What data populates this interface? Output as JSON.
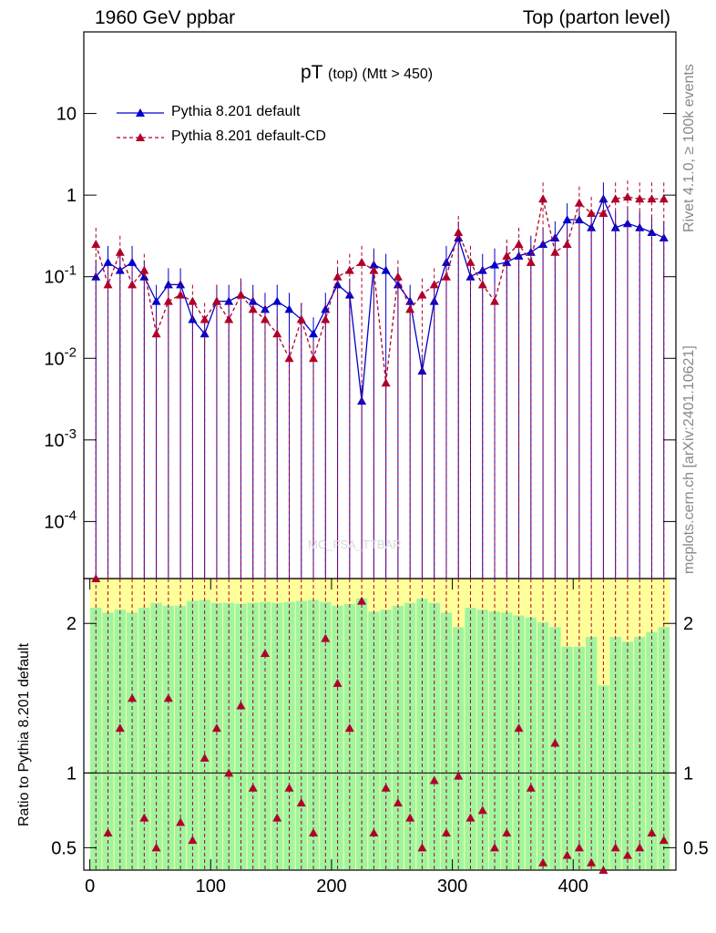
{
  "header": {
    "left": "1960 GeV ppbar",
    "right": "Top (parton level)",
    "side_rivet": "Rivet 4.1.0, ≥ 100k events",
    "side_mcplots": "mcplots.cern.ch [arXiv:2401.10621]"
  },
  "title": {
    "main": "pT",
    "sub": "(top) (Mtt > 450)"
  },
  "watermark": "MC_FSA_TTBAR",
  "legend": {
    "series1": "Pythia 8.201 default",
    "series2": "Pythia 8.201 default-CD"
  },
  "ratio_ylabel": "Ratio to Pythia 8.201 default",
  "colors": {
    "series1": "#0000cc",
    "series2": "#b0002a",
    "band_green": "#a0f5a0",
    "band_yellow": "#ffff9a"
  },
  "chart_data": {
    "type": "line",
    "xlim": [
      -5,
      485
    ],
    "ylim_main": [
      2e-05,
      100
    ],
    "ylim_ratio": [
      0.35,
      2.3
    ],
    "x_ticks": [
      "0",
      "100",
      "200",
      "300",
      "400"
    ],
    "y_ticks_main": [
      "10",
      "1",
      "10^-1",
      "10^-2",
      "10^-3",
      "10^-4"
    ],
    "y_ticks_ratio": [
      "2",
      "1",
      "0.5"
    ],
    "x": [
      5,
      15,
      25,
      35,
      45,
      55,
      65,
      75,
      85,
      95,
      105,
      115,
      125,
      135,
      145,
      155,
      165,
      175,
      185,
      195,
      205,
      215,
      225,
      235,
      245,
      255,
      265,
      275,
      285,
      295,
      305,
      315,
      325,
      335,
      345,
      355,
      365,
      375,
      385,
      395,
      405,
      415,
      425,
      435,
      445,
      455,
      465,
      475
    ],
    "series": [
      {
        "name": "Pythia 8.201 default",
        "values": [
          0.1,
          0.15,
          0.12,
          0.15,
          0.1,
          0.05,
          0.08,
          0.08,
          0.03,
          0.02,
          0.05,
          0.05,
          0.06,
          0.05,
          0.04,
          0.05,
          0.04,
          0.03,
          0.02,
          0.04,
          0.08,
          0.06,
          0.003,
          0.14,
          0.12,
          0.08,
          0.05,
          0.007,
          0.05,
          0.15,
          0.3,
          0.1,
          0.12,
          0.14,
          0.15,
          0.18,
          0.2,
          0.25,
          0.3,
          0.5,
          0.5,
          0.4,
          0.9,
          0.4,
          0.45,
          0.4,
          0.35,
          0.3
        ]
      },
      {
        "name": "Pythia 8.201 default-CD",
        "values": [
          0.25,
          0.08,
          0.2,
          0.08,
          0.12,
          0.02,
          0.05,
          0.06,
          0.05,
          0.03,
          0.05,
          0.03,
          0.06,
          0.04,
          0.03,
          0.02,
          0.01,
          0.03,
          0.01,
          0.03,
          0.1,
          0.12,
          0.15,
          0.12,
          0.005,
          0.1,
          0.04,
          0.06,
          0.08,
          0.1,
          0.35,
          0.15,
          0.08,
          0.05,
          0.18,
          0.25,
          0.15,
          0.9,
          0.2,
          0.25,
          0.8,
          0.6,
          0.6,
          0.9,
          0.95,
          0.9,
          0.9,
          0.9
        ]
      }
    ],
    "ratio_series": {
      "name": "Pythia 8.201 default-CD / Pythia 8.201 default",
      "values": [
        2.3,
        0.6,
        1.3,
        1.5,
        0.7,
        0.5,
        1.5,
        0.67,
        0.55,
        1.1,
        1.3,
        1.0,
        1.45,
        0.9,
        1.8,
        0.7,
        0.9,
        0.8,
        0.6,
        1.9,
        1.6,
        1.3,
        2.15,
        0.6,
        0.9,
        0.8,
        0.7,
        0.5,
        0.95,
        0.6,
        0.98,
        0.7,
        0.75,
        0.5,
        0.6,
        1.3,
        0.9,
        0.4,
        1.2,
        0.45,
        0.5,
        0.4,
        0.35,
        0.5,
        0.45,
        0.5,
        0.6,
        0.55
      ]
    }
  }
}
